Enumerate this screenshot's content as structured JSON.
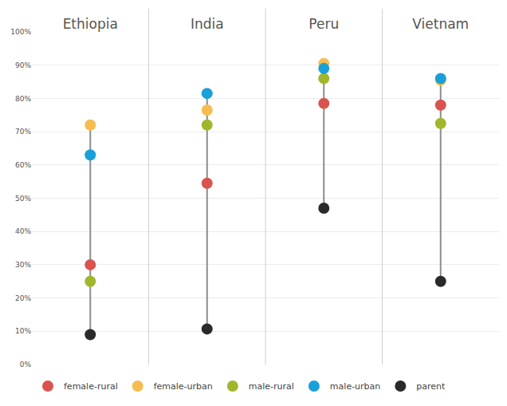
{
  "chart_data": {
    "type": "scatter",
    "categories": [
      "Ethiopia",
      "India",
      "Peru",
      "Vietnam"
    ],
    "series": [
      {
        "name": "female-rural",
        "color": "#d9534f",
        "values": [
          30,
          54.5,
          78.5,
          78
        ]
      },
      {
        "name": "female-urban",
        "color": "#f5bd4f",
        "values": [
          72,
          76.5,
          90.5,
          85.5
        ]
      },
      {
        "name": "male-rural",
        "color": "#a2b62b",
        "values": [
          25,
          72,
          86,
          72.5
        ]
      },
      {
        "name": "male-urban",
        "color": "#1aa0d8",
        "values": [
          63,
          81.5,
          89,
          86
        ]
      },
      {
        "name": "parent",
        "color": "#2a2a2a",
        "values": [
          9,
          10.7,
          47,
          25
        ]
      }
    ],
    "ylim": [
      0,
      100
    ],
    "yticks": [
      {
        "value": 0,
        "label": "0%"
      },
      {
        "value": 10,
        "label": "10%"
      },
      {
        "value": 20,
        "label": "20%"
      },
      {
        "value": 30,
        "label": "30%"
      },
      {
        "value": 40,
        "label": "40%"
      },
      {
        "value": 50,
        "label": "50%"
      },
      {
        "value": 60,
        "label": "60%"
      },
      {
        "value": 70,
        "label": "70%"
      },
      {
        "value": 80,
        "label": "80%"
      },
      {
        "value": 90,
        "label": "90%"
      },
      {
        "value": 100,
        "label": "100%"
      }
    ],
    "grid": true,
    "legend": "bottom",
    "marker": "circle"
  }
}
